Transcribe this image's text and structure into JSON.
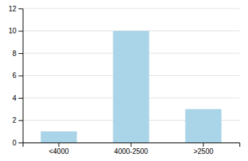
{
  "chart_data": {
    "type": "bar",
    "categories": [
      "<4000",
      "4000-2500",
      ">2500"
    ],
    "values": [
      1,
      10,
      3
    ],
    "color": "#aad4e8",
    "ylim": [
      0,
      12
    ],
    "yticks": [
      0,
      2,
      4,
      6,
      8,
      10,
      12
    ],
    "grid": true
  }
}
